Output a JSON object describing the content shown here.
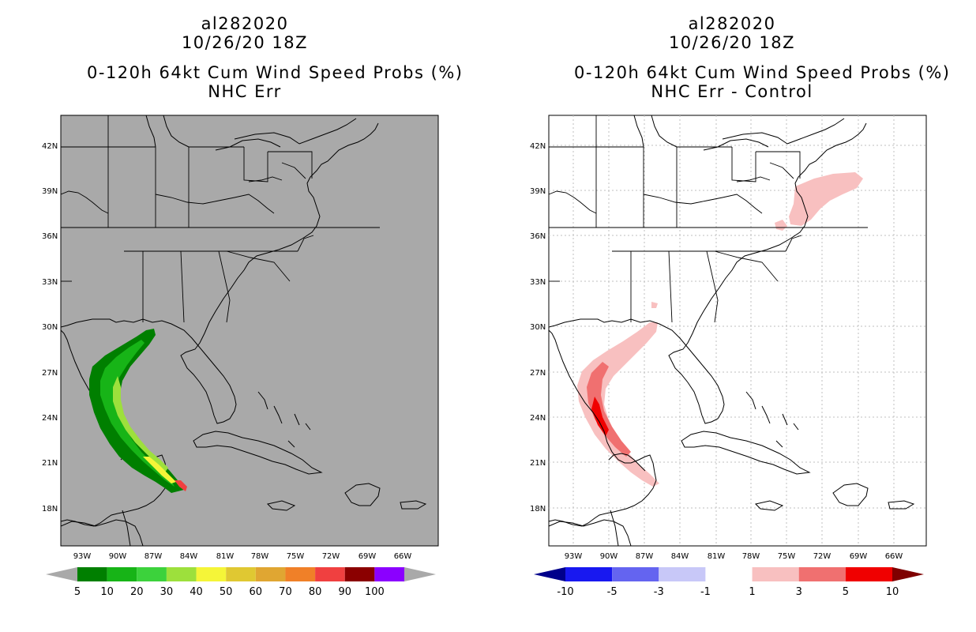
{
  "left_panel": {
    "title_lines": [
      "al282020",
      "10/26/20 18Z",
      "0-120h 64kt Cum Wind Speed Probs (%)",
      "NHC Err"
    ],
    "background": "#a9a9a9",
    "colorbar": {
      "labels": [
        "5",
        "10",
        "20",
        "30",
        "40",
        "50",
        "60",
        "70",
        "80",
        "90",
        "100"
      ],
      "colors": [
        "#007f00",
        "#17b417",
        "#3cd23c",
        "#9de03c",
        "#f5f538",
        "#e0c832",
        "#e0a632",
        "#f08028",
        "#f04040",
        "#8b0000",
        "#8b00ff"
      ],
      "low_arrow": "#a9a9a9",
      "high_arrow": "#a9a9a9"
    }
  },
  "right_panel": {
    "title_lines": [
      "al282020",
      "10/26/20 18Z",
      "0-120h 64kt Cum Wind Speed Probs (%)",
      "NHC Err - Control"
    ],
    "background": "#ffffff",
    "colorbar": {
      "labels": [
        "-10",
        "-5",
        "-3",
        "-1",
        "1",
        "3",
        "5",
        "10"
      ],
      "colors": [
        "#1818f0",
        "#6464f0",
        "#c8c8f8",
        "#ffffff",
        "#f8c0c0",
        "#f07070",
        "#f00000"
      ],
      "low_arrow": "#00008b",
      "high_arrow": "#7f0000"
    }
  },
  "axes": {
    "lat_labels": [
      "42N",
      "39N",
      "36N",
      "33N",
      "30N",
      "27N",
      "24N",
      "21N",
      "18N"
    ],
    "lon_labels": [
      "93W",
      "90W",
      "87W",
      "84W",
      "81W",
      "78W",
      "75W",
      "72W",
      "69W",
      "66W"
    ]
  }
}
